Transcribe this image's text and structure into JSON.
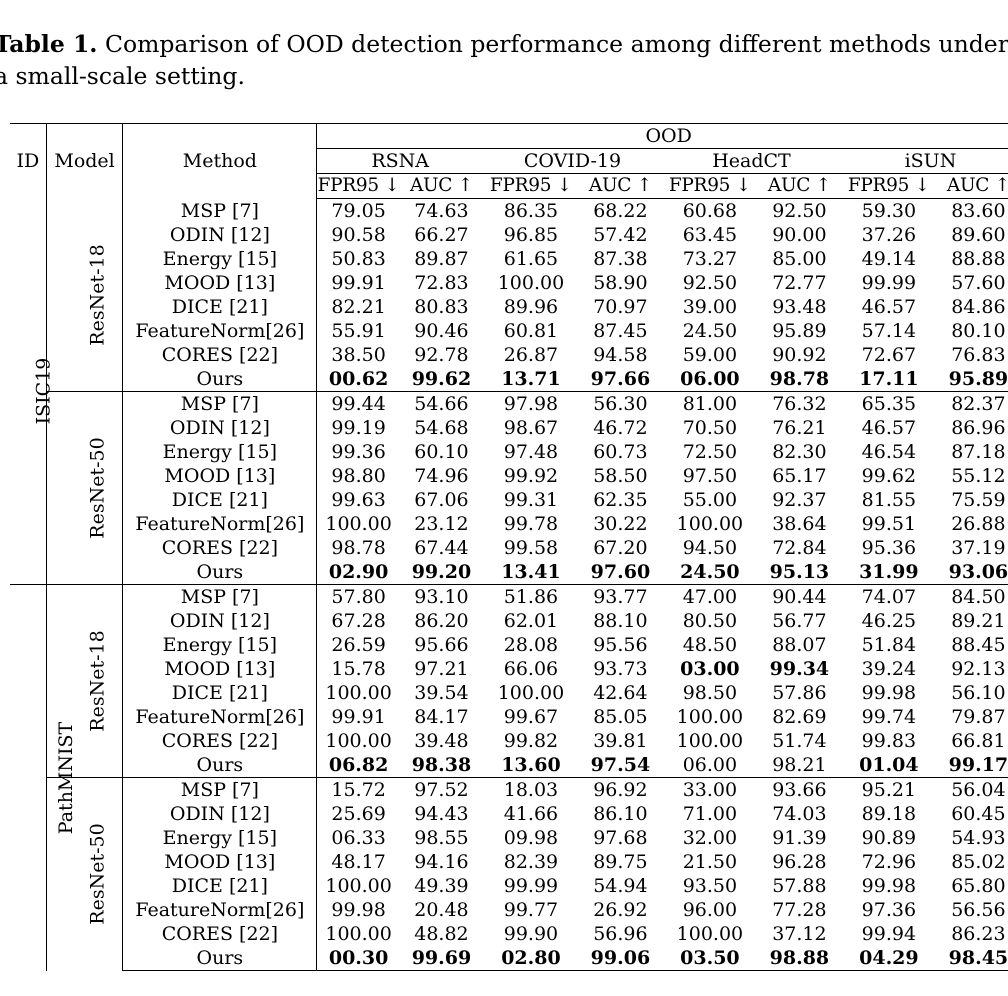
{
  "caption": {
    "label": "Table 1.",
    "line1": " Comparison of OOD detection performance among different methods under",
    "line2": "a small-scale setting."
  },
  "header": {
    "id": "ID",
    "model": "Model",
    "method": "Method",
    "ood": "OOD",
    "datasets": [
      "RSNA",
      "COVID-19",
      "HeadCT",
      "iSUN"
    ],
    "metrics": [
      "FPR95 ↓",
      "AUC ↑",
      "FPR95 ↓",
      "AUC ↑",
      "FPR95 ↓",
      "AUC ↑",
      "FPR95 ↓",
      "AUC ↑"
    ]
  },
  "groups": [
    {
      "id": "ISIC19",
      "models": [
        {
          "model": "ResNet-18",
          "rows": [
            {
              "method": "MSP [7]",
              "values": [
                "79.05",
                "74.63",
                "86.35",
                "68.22",
                "60.68",
                "92.50",
                "59.30",
                "83.60"
              ],
              "bold": [
                false,
                false,
                false,
                false,
                false,
                false,
                false,
                false
              ]
            },
            {
              "method": "ODIN [12]",
              "values": [
                "90.58",
                "66.27",
                "96.85",
                "57.42",
                "63.45",
                "90.00",
                "37.26",
                "89.60"
              ],
              "bold": [
                false,
                false,
                false,
                false,
                false,
                false,
                false,
                false
              ]
            },
            {
              "method": "Energy [15]",
              "values": [
                "50.83",
                "89.87",
                "61.65",
                "87.38",
                "73.27",
                "85.00",
                "49.14",
                "88.88"
              ],
              "bold": [
                false,
                false,
                false,
                false,
                false,
                false,
                false,
                false
              ]
            },
            {
              "method": "MOOD [13]",
              "values": [
                "99.91",
                "72.83",
                "100.00",
                "58.90",
                "92.50",
                "72.77",
                "99.99",
                "57.60"
              ],
              "bold": [
                false,
                false,
                false,
                false,
                false,
                false,
                false,
                false
              ]
            },
            {
              "method": "DICE [21]",
              "values": [
                "82.21",
                "80.83",
                "89.96",
                "70.97",
                "39.00",
                "93.48",
                "46.57",
                "84.86"
              ],
              "bold": [
                false,
                false,
                false,
                false,
                false,
                false,
                false,
                false
              ]
            },
            {
              "method": "FeatureNorm[26]",
              "values": [
                "55.91",
                "90.46",
                "60.81",
                "87.45",
                "24.50",
                "95.89",
                "57.14",
                "80.10"
              ],
              "bold": [
                false,
                false,
                false,
                false,
                false,
                false,
                false,
                false
              ]
            },
            {
              "method": "CORES [22]",
              "values": [
                "38.50",
                "92.78",
                "26.87",
                "94.58",
                "59.00",
                "90.92",
                "72.67",
                "76.83"
              ],
              "bold": [
                false,
                false,
                false,
                false,
                false,
                false,
                false,
                false
              ]
            },
            {
              "method": "Ours",
              "values": [
                "00.62",
                "99.62",
                "13.71",
                "97.66",
                "06.00",
                "98.78",
                "17.11",
                "95.89"
              ],
              "bold": [
                true,
                true,
                true,
                true,
                true,
                true,
                true,
                true
              ]
            }
          ]
        },
        {
          "model": "ResNet-50",
          "rows": [
            {
              "method": "MSP [7]",
              "values": [
                "99.44",
                "54.66",
                "97.98",
                "56.30",
                "81.00",
                "76.32",
                "65.35",
                "82.37"
              ],
              "bold": [
                false,
                false,
                false,
                false,
                false,
                false,
                false,
                false
              ]
            },
            {
              "method": "ODIN [12]",
              "values": [
                "99.19",
                "54.68",
                "98.67",
                "46.72",
                "70.50",
                "76.21",
                "46.57",
                "86.96"
              ],
              "bold": [
                false,
                false,
                false,
                false,
                false,
                false,
                false,
                false
              ]
            },
            {
              "method": "Energy [15]",
              "values": [
                "99.36",
                "60.10",
                "97.48",
                "60.73",
                "72.50",
                "82.30",
                "46.54",
                "87.18"
              ],
              "bold": [
                false,
                false,
                false,
                false,
                false,
                false,
                false,
                false
              ]
            },
            {
              "method": "MOOD [13]",
              "values": [
                "98.80",
                "74.96",
                "99.92",
                "58.50",
                "97.50",
                "65.17",
                "99.62",
                "55.12"
              ],
              "bold": [
                false,
                false,
                false,
                false,
                false,
                false,
                false,
                false
              ]
            },
            {
              "method": "DICE [21]",
              "values": [
                "99.63",
                "67.06",
                "99.31",
                "62.35",
                "55.00",
                "92.37",
                "81.55",
                "75.59"
              ],
              "bold": [
                false,
                false,
                false,
                false,
                false,
                false,
                false,
                false
              ]
            },
            {
              "method": "FeatureNorm[26]",
              "values": [
                "100.00",
                "23.12",
                "99.78",
                "30.22",
                "100.00",
                "38.64",
                "99.51",
                "26.88"
              ],
              "bold": [
                false,
                false,
                false,
                false,
                false,
                false,
                false,
                false
              ]
            },
            {
              "method": "CORES [22]",
              "values": [
                "98.78",
                "67.44",
                "99.58",
                "67.20",
                "94.50",
                "72.84",
                "95.36",
                "37.19"
              ],
              "bold": [
                false,
                false,
                false,
                false,
                false,
                false,
                false,
                false
              ]
            },
            {
              "method": "Ours",
              "values": [
                "02.90",
                "99.20",
                "13.41",
                "97.60",
                "24.50",
                "95.13",
                "31.99",
                "93.06"
              ],
              "bold": [
                true,
                true,
                true,
                true,
                true,
                true,
                true,
                true
              ]
            }
          ]
        }
      ]
    },
    {
      "id": "PathMNIST",
      "models": [
        {
          "model": "ResNet-18",
          "rows": [
            {
              "method": "MSP [7]",
              "values": [
                "57.80",
                "93.10",
                "51.86",
                "93.77",
                "47.00",
                "90.44",
                "74.07",
                "84.50"
              ],
              "bold": [
                false,
                false,
                false,
                false,
                false,
                false,
                false,
                false
              ]
            },
            {
              "method": "ODIN [12]",
              "values": [
                "67.28",
                "86.20",
                "62.01",
                "88.10",
                "80.50",
                "56.77",
                "46.25",
                "89.21"
              ],
              "bold": [
                false,
                false,
                false,
                false,
                false,
                false,
                false,
                false
              ]
            },
            {
              "method": "Energy [15]",
              "values": [
                "26.59",
                "95.66",
                "28.08",
                "95.56",
                "48.50",
                "88.07",
                "51.84",
                "88.45"
              ],
              "bold": [
                false,
                false,
                false,
                false,
                false,
                false,
                false,
                false
              ]
            },
            {
              "method": "MOOD [13]",
              "values": [
                "15.78",
                "97.21",
                "66.06",
                "93.73",
                "03.00",
                "99.34",
                "39.24",
                "92.13"
              ],
              "bold": [
                false,
                false,
                false,
                false,
                true,
                true,
                false,
                false
              ]
            },
            {
              "method": "DICE [21]",
              "values": [
                "100.00",
                "39.54",
                "100.00",
                "42.64",
                "98.50",
                "57.86",
                "99.98",
                "56.10"
              ],
              "bold": [
                false,
                false,
                false,
                false,
                false,
                false,
                false,
                false
              ]
            },
            {
              "method": "FeatureNorm[26]",
              "values": [
                "99.91",
                "84.17",
                "99.67",
                "85.05",
                "100.00",
                "82.69",
                "99.74",
                "79.87"
              ],
              "bold": [
                false,
                false,
                false,
                false,
                false,
                false,
                false,
                false
              ]
            },
            {
              "method": "CORES [22]",
              "values": [
                "100.00",
                "39.48",
                "99.82",
                "39.81",
                "100.00",
                "51.74",
                "99.83",
                "66.81"
              ],
              "bold": [
                false,
                false,
                false,
                false,
                false,
                false,
                false,
                false
              ]
            },
            {
              "method": "Ours",
              "values": [
                "06.82",
                "98.38",
                "13.60",
                "97.54",
                "06.00",
                "98.21",
                "01.04",
                "99.17"
              ],
              "bold": [
                true,
                true,
                true,
                true,
                false,
                false,
                true,
                true
              ]
            }
          ]
        },
        {
          "model": "ResNet-50",
          "rows": [
            {
              "method": "MSP [7]",
              "values": [
                "15.72",
                "97.52",
                "18.03",
                "96.92",
                "33.00",
                "93.66",
                "95.21",
                "56.04"
              ],
              "bold": [
                false,
                false,
                false,
                false,
                false,
                false,
                false,
                false
              ]
            },
            {
              "method": "ODIN [12]",
              "values": [
                "25.69",
                "94.43",
                "41.66",
                "86.10",
                "71.00",
                "74.03",
                "89.18",
                "60.45"
              ],
              "bold": [
                false,
                false,
                false,
                false,
                false,
                false,
                false,
                false
              ]
            },
            {
              "method": "Energy [15]",
              "values": [
                "06.33",
                "98.55",
                "09.98",
                "97.68",
                "32.00",
                "91.39",
                "90.89",
                "54.93"
              ],
              "bold": [
                false,
                false,
                false,
                false,
                false,
                false,
                false,
                false
              ]
            },
            {
              "method": "MOOD [13]",
              "values": [
                "48.17",
                "94.16",
                "82.39",
                "89.75",
                "21.50",
                "96.28",
                "72.96",
                "85.02"
              ],
              "bold": [
                false,
                false,
                false,
                false,
                false,
                false,
                false,
                false
              ]
            },
            {
              "method": "DICE [21]",
              "values": [
                "100.00",
                "49.39",
                "99.99",
                "54.94",
                "93.50",
                "57.88",
                "99.98",
                "65.80"
              ],
              "bold": [
                false,
                false,
                false,
                false,
                false,
                false,
                false,
                false
              ]
            },
            {
              "method": "FeatureNorm[26]",
              "values": [
                "99.98",
                "20.48",
                "99.77",
                "26.92",
                "96.00",
                "77.28",
                "97.36",
                "56.56"
              ],
              "bold": [
                false,
                false,
                false,
                false,
                false,
                false,
                false,
                false
              ]
            },
            {
              "method": "CORES [22]",
              "values": [
                "100.00",
                "48.82",
                "99.90",
                "56.96",
                "100.00",
                "37.12",
                "99.94",
                "86.23"
              ],
              "bold": [
                false,
                false,
                false,
                false,
                false,
                false,
                false,
                false
              ]
            },
            {
              "method": "Ours",
              "values": [
                "00.30",
                "99.69",
                "02.80",
                "99.06",
                "03.50",
                "98.88",
                "04.29",
                "98.45"
              ],
              "bold": [
                true,
                true,
                true,
                true,
                true,
                true,
                true,
                true
              ]
            }
          ]
        }
      ]
    }
  ]
}
